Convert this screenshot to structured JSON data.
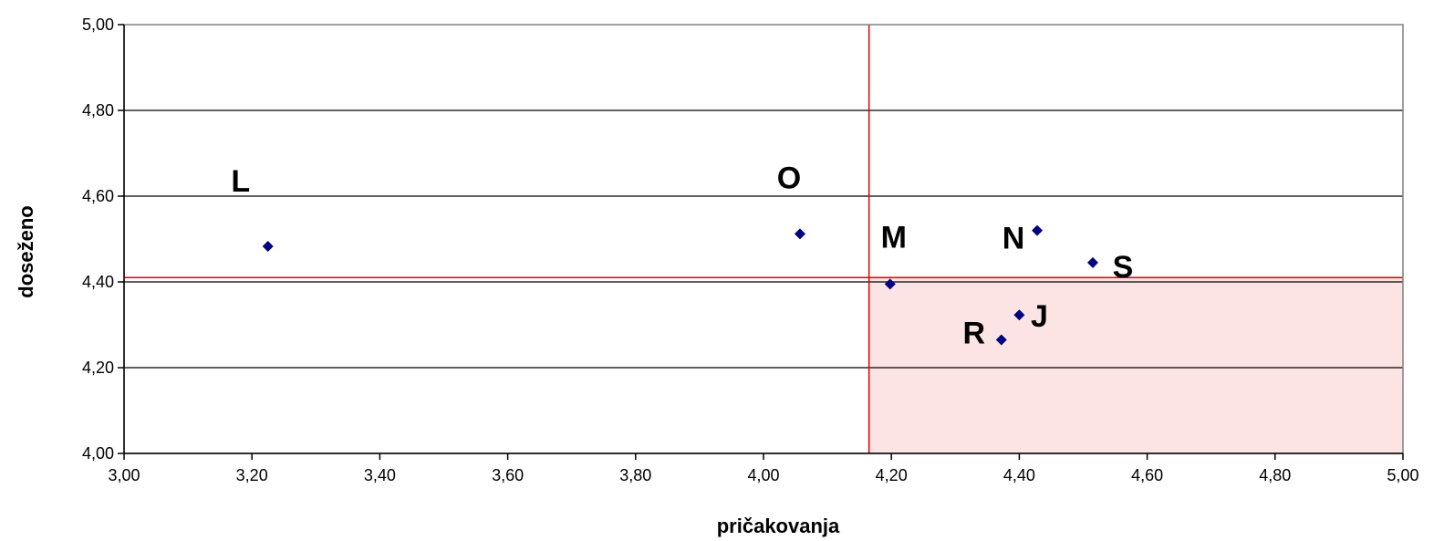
{
  "chart_data": {
    "type": "scatter",
    "xlabel": "pričakovanja",
    "ylabel": "doseženo",
    "xlim": [
      3.0,
      5.0
    ],
    "ylim": [
      4.0,
      5.0
    ],
    "x_ticks": [
      "3,00",
      "3,20",
      "3,40",
      "3,60",
      "3,80",
      "4,00",
      "4,20",
      "4,40",
      "4,60",
      "4,80",
      "5,00"
    ],
    "y_ticks": [
      "4,00",
      "4,20",
      "4,40",
      "4,60",
      "4,80",
      "5,00"
    ],
    "grid": "horizontal",
    "reference_lines": {
      "x": 4.165,
      "y": 4.41,
      "color": "#e00000"
    },
    "highlight_region": {
      "x_from": 4.165,
      "x_to": 5.0,
      "y_from": 4.0,
      "y_to": 4.41,
      "color": "#fde4e4"
    },
    "marker_color": "#000080",
    "points": [
      {
        "label": "L",
        "x": 3.225,
        "y": 4.483
      },
      {
        "label": "O",
        "x": 4.057,
        "y": 4.512
      },
      {
        "label": "M",
        "x": 4.198,
        "y": 4.395
      },
      {
        "label": "N",
        "x": 4.428,
        "y": 4.52
      },
      {
        "label": "S",
        "x": 4.515,
        "y": 4.445
      },
      {
        "label": "J",
        "x": 4.4,
        "y": 4.323
      },
      {
        "label": "R",
        "x": 4.372,
        "y": 4.265
      }
    ]
  }
}
